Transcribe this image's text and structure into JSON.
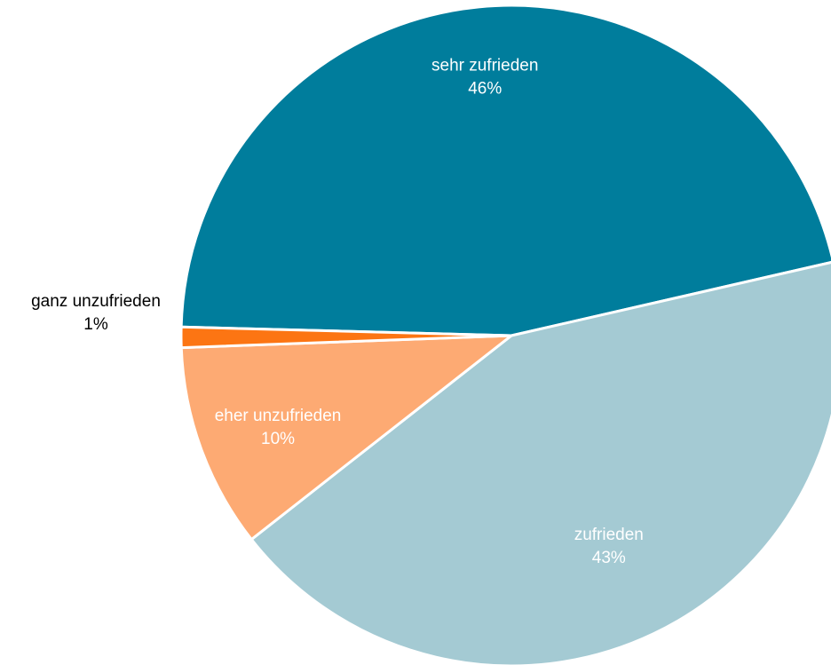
{
  "chart_data": {
    "type": "pie",
    "title": "",
    "slices": [
      {
        "label": "sehr zufrieden",
        "value": 46,
        "value_label": "46%",
        "color": "#007D9C",
        "label_color": "#ffffff"
      },
      {
        "label": "zufrieden",
        "value": 43,
        "value_label": "43%",
        "color": "#A4CAD3",
        "label_color": "#ffffff"
      },
      {
        "label": "eher unzufrieden",
        "value": 10,
        "value_label": "10%",
        "color": "#FDAA73",
        "label_color": "#ffffff"
      },
      {
        "label": "ganz unzufrieden",
        "value": 1,
        "value_label": "1%",
        "color": "#FC7513",
        "label_color": "#000000",
        "label_outside": true
      }
    ],
    "start": "clockwise from roughly 9 o'clock (first slice sweeps over the top to the right edge)",
    "legend": "none"
  }
}
